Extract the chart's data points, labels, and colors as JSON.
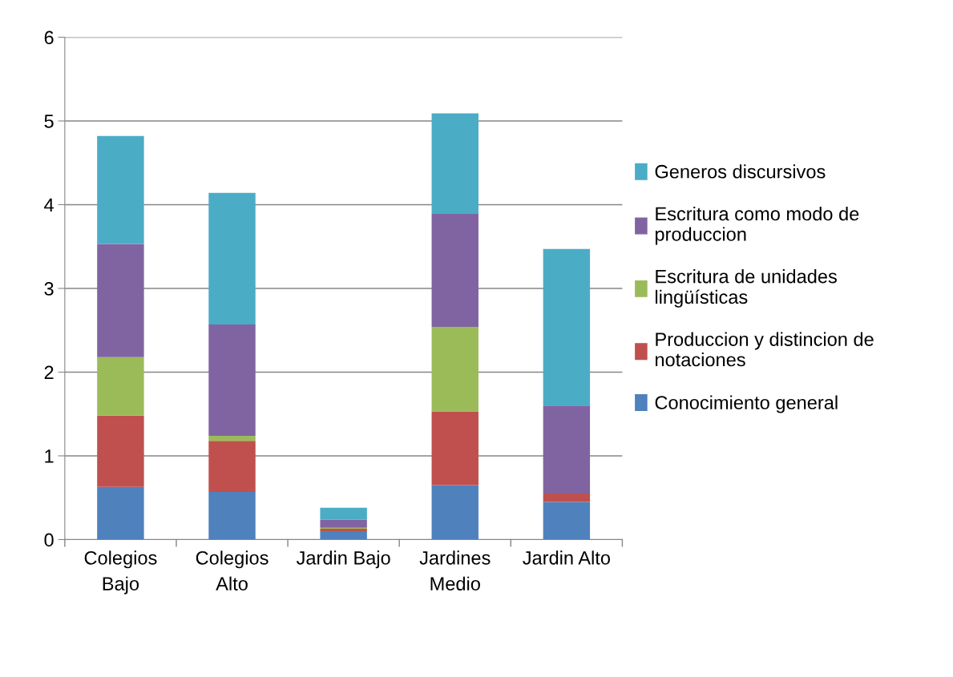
{
  "chart_data": {
    "type": "bar",
    "stacked": true,
    "categories": [
      "Colegios\nBajo",
      "Colegios\nAlto",
      "Jardin Bajo",
      "Jardines\nMedio",
      "Jardin Alto"
    ],
    "series": [
      {
        "name": "Conocimiento general",
        "color": "#4f81bd",
        "values": [
          0.63,
          0.57,
          0.1,
          0.65,
          0.45
        ]
      },
      {
        "name": "Produccion y distincion de\nnotaciones",
        "color": "#c0504d",
        "values": [
          0.85,
          0.61,
          0.03,
          0.88,
          0.1
        ]
      },
      {
        "name": "Escritura de unidades\nlingüísticas",
        "color": "#9bbb59",
        "values": [
          0.7,
          0.06,
          0.01,
          1.01,
          0
        ]
      },
      {
        "name": "Escritura como modo de\nproduccion",
        "color": "#8064a2",
        "values": [
          1.35,
          1.33,
          0.1,
          1.35,
          1.05
        ]
      },
      {
        "name": "Generos discursivos",
        "color": "#4bacc6",
        "values": [
          1.29,
          1.57,
          0.14,
          1.2,
          1.87
        ]
      }
    ],
    "ylim": [
      0,
      6
    ],
    "yticks": [
      0,
      1,
      2,
      3,
      4,
      5,
      6
    ],
    "grid": "y",
    "legend": "right"
  }
}
